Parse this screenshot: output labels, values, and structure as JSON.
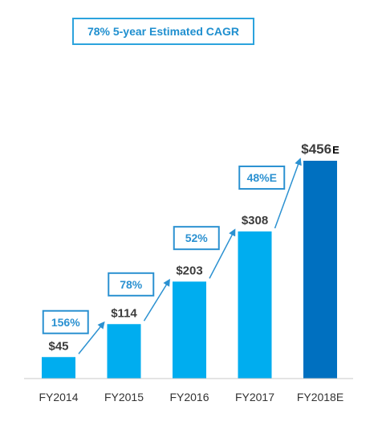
{
  "headline": "78% 5-year Estimated CAGR",
  "chart_data": {
    "type": "bar",
    "categories": [
      "FY2014",
      "FY2015",
      "FY2016",
      "FY2017",
      "FY2018E"
    ],
    "values": [
      45,
      114,
      203,
      308,
      456
    ],
    "value_labels": [
      "$45",
      "$114",
      "$203",
      "$308",
      "$456"
    ],
    "estimate_suffix": "E",
    "growth_labels": [
      "156%",
      "78%",
      "52%",
      "48%E"
    ],
    "title": "",
    "xlabel": "",
    "ylabel": "",
    "ylim": [
      0,
      456
    ],
    "grid": false,
    "colors": {
      "actual": "#00adef",
      "estimate": "#0070c0",
      "growth": "#2b91d1",
      "value_text": "#3c3c3c",
      "axis": "#c8c8c8"
    }
  }
}
